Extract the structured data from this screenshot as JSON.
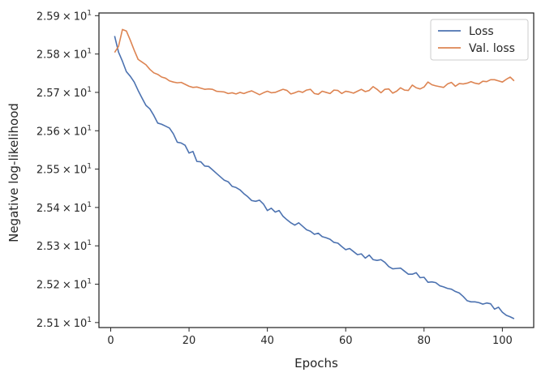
{
  "chart_data": {
    "type": "line",
    "xlabel": "Epochs",
    "ylabel": "Negative log-likelihood",
    "xlim": [
      -3,
      108
    ],
    "ylim": [
      25.087,
      25.907
    ],
    "x_ticks": [
      {
        "value": 0,
        "label": "0"
      },
      {
        "value": 20,
        "label": "20"
      },
      {
        "value": 40,
        "label": "40"
      },
      {
        "value": 60,
        "label": "60"
      },
      {
        "value": 80,
        "label": "80"
      },
      {
        "value": 100,
        "label": "100"
      }
    ],
    "y_ticks": [
      {
        "value": 25.1,
        "mantissa": "2.51",
        "times": "×",
        "base": "10",
        "exp": "1"
      },
      {
        "value": 25.2,
        "mantissa": "2.52",
        "times": "×",
        "base": "10",
        "exp": "1"
      },
      {
        "value": 25.3,
        "mantissa": "2.53",
        "times": "×",
        "base": "10",
        "exp": "1"
      },
      {
        "value": 25.4,
        "mantissa": "2.54",
        "times": "×",
        "base": "10",
        "exp": "1"
      },
      {
        "value": 25.5,
        "mantissa": "2.55",
        "times": "×",
        "base": "10",
        "exp": "1"
      },
      {
        "value": 25.6,
        "mantissa": "2.56",
        "times": "×",
        "base": "10",
        "exp": "1"
      },
      {
        "value": 25.7,
        "mantissa": "2.57",
        "times": "×",
        "base": "10",
        "exp": "1"
      },
      {
        "value": 25.8,
        "mantissa": "2.58",
        "times": "×",
        "base": "10",
        "exp": "1"
      },
      {
        "value": 25.9,
        "mantissa": "2.59",
        "times": "×",
        "base": "10",
        "exp": "1"
      }
    ],
    "grid": false,
    "legend_position": "top-right",
    "series": [
      {
        "name": "Loss",
        "color": "#4c72b0",
        "points": [
          [
            1,
            25.847
          ],
          [
            2,
            25.805
          ],
          [
            3,
            25.781
          ],
          [
            4,
            25.754
          ],
          [
            5,
            25.742
          ],
          [
            6,
            25.727
          ],
          [
            7,
            25.705
          ],
          [
            8,
            25.685
          ],
          [
            9,
            25.666
          ],
          [
            10,
            25.657
          ],
          [
            11,
            25.64
          ],
          [
            12,
            25.62
          ],
          [
            13,
            25.617
          ],
          [
            14,
            25.612
          ],
          [
            15,
            25.607
          ],
          [
            16,
            25.592
          ],
          [
            17,
            25.57
          ],
          [
            18,
            25.568
          ],
          [
            19,
            25.562
          ],
          [
            20,
            25.542
          ],
          [
            21,
            25.546
          ],
          [
            22,
            25.52
          ],
          [
            23,
            25.519
          ],
          [
            24,
            25.508
          ],
          [
            25,
            25.507
          ],
          [
            26,
            25.498
          ],
          [
            27,
            25.489
          ],
          [
            28,
            25.48
          ],
          [
            29,
            25.471
          ],
          [
            30,
            25.467
          ],
          [
            31,
            25.455
          ],
          [
            32,
            25.452
          ],
          [
            33,
            25.446
          ],
          [
            34,
            25.436
          ],
          [
            35,
            25.428
          ],
          [
            36,
            25.418
          ],
          [
            37,
            25.416
          ],
          [
            38,
            25.419
          ],
          [
            39,
            25.409
          ],
          [
            40,
            25.392
          ],
          [
            41,
            25.398
          ],
          [
            42,
            25.388
          ],
          [
            43,
            25.392
          ],
          [
            44,
            25.377
          ],
          [
            45,
            25.368
          ],
          [
            46,
            25.36
          ],
          [
            47,
            25.354
          ],
          [
            48,
            25.36
          ],
          [
            49,
            25.351
          ],
          [
            50,
            25.342
          ],
          [
            51,
            25.338
          ],
          [
            52,
            25.33
          ],
          [
            53,
            25.333
          ],
          [
            54,
            25.324
          ],
          [
            55,
            25.321
          ],
          [
            56,
            25.317
          ],
          [
            57,
            25.309
          ],
          [
            58,
            25.307
          ],
          [
            59,
            25.298
          ],
          [
            60,
            25.29
          ],
          [
            61,
            25.293
          ],
          [
            62,
            25.285
          ],
          [
            63,
            25.277
          ],
          [
            64,
            25.279
          ],
          [
            65,
            25.268
          ],
          [
            66,
            25.276
          ],
          [
            67,
            25.264
          ],
          [
            68,
            25.262
          ],
          [
            69,
            25.264
          ],
          [
            70,
            25.257
          ],
          [
            71,
            25.246
          ],
          [
            72,
            25.24
          ],
          [
            73,
            25.241
          ],
          [
            74,
            25.242
          ],
          [
            75,
            25.234
          ],
          [
            76,
            25.226
          ],
          [
            77,
            25.226
          ],
          [
            78,
            25.23
          ],
          [
            79,
            25.217
          ],
          [
            80,
            25.218
          ],
          [
            81,
            25.205
          ],
          [
            82,
            25.206
          ],
          [
            83,
            25.204
          ],
          [
            84,
            25.196
          ],
          [
            85,
            25.193
          ],
          [
            86,
            25.189
          ],
          [
            87,
            25.187
          ],
          [
            88,
            25.181
          ],
          [
            89,
            25.177
          ],
          [
            90,
            25.168
          ],
          [
            91,
            25.157
          ],
          [
            92,
            25.154
          ],
          [
            93,
            25.154
          ],
          [
            94,
            25.152
          ],
          [
            95,
            25.148
          ],
          [
            96,
            25.151
          ],
          [
            97,
            25.149
          ],
          [
            98,
            25.135
          ],
          [
            99,
            25.14
          ],
          [
            100,
            25.127
          ],
          [
            101,
            25.119
          ],
          [
            102,
            25.115
          ],
          [
            103,
            25.11
          ]
        ]
      },
      {
        "name": "Val. loss",
        "color": "#dd8452",
        "points": [
          [
            1,
            25.804
          ],
          [
            2,
            25.82
          ],
          [
            3,
            25.864
          ],
          [
            4,
            25.86
          ],
          [
            5,
            25.836
          ],
          [
            6,
            25.81
          ],
          [
            7,
            25.786
          ],
          [
            8,
            25.779
          ],
          [
            9,
            25.772
          ],
          [
            10,
            25.76
          ],
          [
            11,
            25.751
          ],
          [
            12,
            25.747
          ],
          [
            13,
            25.74
          ],
          [
            14,
            25.737
          ],
          [
            15,
            25.73
          ],
          [
            16,
            25.727
          ],
          [
            17,
            25.725
          ],
          [
            18,
            25.726
          ],
          [
            19,
            25.721
          ],
          [
            20,
            25.716
          ],
          [
            21,
            25.713
          ],
          [
            22,
            25.714
          ],
          [
            23,
            25.711
          ],
          [
            24,
            25.708
          ],
          [
            25,
            25.709
          ],
          [
            26,
            25.708
          ],
          [
            27,
            25.703
          ],
          [
            28,
            25.702
          ],
          [
            29,
            25.701
          ],
          [
            30,
            25.697
          ],
          [
            31,
            25.699
          ],
          [
            32,
            25.696
          ],
          [
            33,
            25.7
          ],
          [
            34,
            25.697
          ],
          [
            35,
            25.701
          ],
          [
            36,
            25.704
          ],
          [
            37,
            25.699
          ],
          [
            38,
            25.694
          ],
          [
            39,
            25.699
          ],
          [
            40,
            25.703
          ],
          [
            41,
            25.699
          ],
          [
            42,
            25.7
          ],
          [
            43,
            25.704
          ],
          [
            44,
            25.708
          ],
          [
            45,
            25.705
          ],
          [
            46,
            25.696
          ],
          [
            47,
            25.699
          ],
          [
            48,
            25.703
          ],
          [
            49,
            25.7
          ],
          [
            50,
            25.706
          ],
          [
            51,
            25.708
          ],
          [
            52,
            25.697
          ],
          [
            53,
            25.695
          ],
          [
            54,
            25.703
          ],
          [
            55,
            25.7
          ],
          [
            56,
            25.697
          ],
          [
            57,
            25.706
          ],
          [
            58,
            25.705
          ],
          [
            59,
            25.697
          ],
          [
            60,
            25.703
          ],
          [
            61,
            25.701
          ],
          [
            62,
            25.698
          ],
          [
            63,
            25.703
          ],
          [
            64,
            25.708
          ],
          [
            65,
            25.702
          ],
          [
            66,
            25.705
          ],
          [
            67,
            25.715
          ],
          [
            68,
            25.708
          ],
          [
            69,
            25.699
          ],
          [
            70,
            25.708
          ],
          [
            71,
            25.709
          ],
          [
            72,
            25.698
          ],
          [
            73,
            25.703
          ],
          [
            74,
            25.712
          ],
          [
            75,
            25.706
          ],
          [
            76,
            25.705
          ],
          [
            77,
            25.719
          ],
          [
            78,
            25.712
          ],
          [
            79,
            25.709
          ],
          [
            80,
            25.714
          ],
          [
            81,
            25.727
          ],
          [
            82,
            25.72
          ],
          [
            83,
            25.717
          ],
          [
            84,
            25.715
          ],
          [
            85,
            25.713
          ],
          [
            86,
            25.722
          ],
          [
            87,
            25.726
          ],
          [
            88,
            25.716
          ],
          [
            89,
            25.723
          ],
          [
            90,
            25.722
          ],
          [
            91,
            25.724
          ],
          [
            92,
            25.728
          ],
          [
            93,
            25.724
          ],
          [
            94,
            25.722
          ],
          [
            95,
            25.729
          ],
          [
            96,
            25.728
          ],
          [
            97,
            25.733
          ],
          [
            98,
            25.733
          ],
          [
            99,
            25.73
          ],
          [
            100,
            25.727
          ],
          [
            101,
            25.734
          ],
          [
            102,
            25.74
          ],
          [
            103,
            25.73
          ]
        ]
      }
    ]
  }
}
